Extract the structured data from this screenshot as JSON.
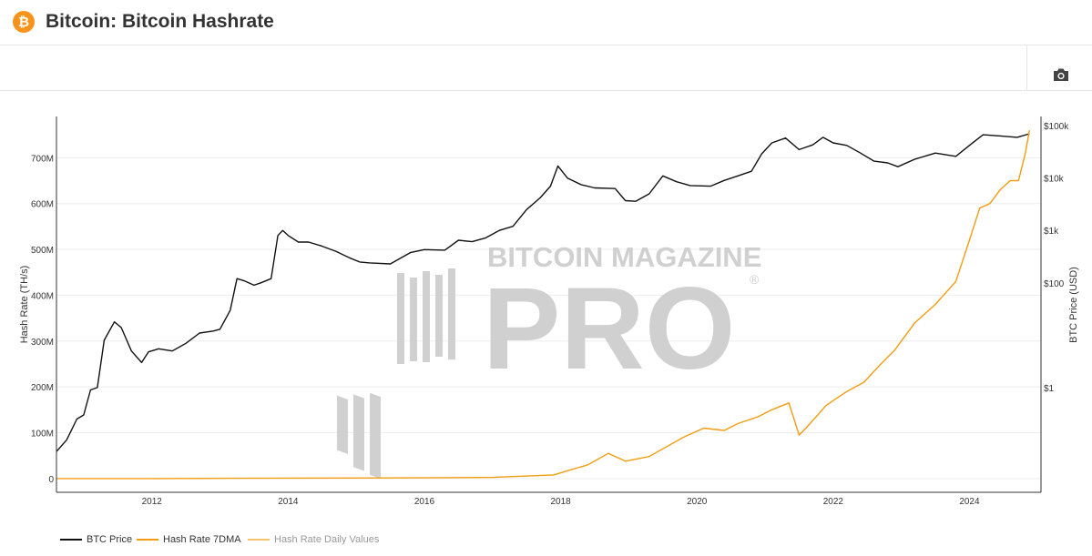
{
  "header": {
    "logo_icon": "bitcoin-icon",
    "logo_glyph": "₿",
    "title": "Bitcoin: Bitcoin Hashrate"
  },
  "toolbar": {
    "camera_icon": "camera-icon"
  },
  "watermark": {
    "line1": "BITCOIN MAGAZINE",
    "line2": "PRO",
    "registered": "®"
  },
  "colors": {
    "btc_price": "#111111",
    "hash_rate_7dma": "#f39c12",
    "hash_rate_daily": "#f6c26b",
    "grid": "#eeeeee",
    "watermark": "#d0d0d0"
  },
  "chart_data": {
    "type": "line",
    "title": "",
    "left_axis": {
      "label": "Hash Rate (TH/s)",
      "ticks": [
        0,
        100000000,
        200000000,
        300000000,
        400000000,
        500000000,
        600000000,
        700000000
      ],
      "tick_labels": [
        "0",
        "100M",
        "200M",
        "300M",
        "400M",
        "500M",
        "600M",
        "700M"
      ],
      "range": [
        -30000000,
        790000000
      ]
    },
    "right_axis": {
      "label": "BTC Price (USD)",
      "scale": "log",
      "ticks": [
        1,
        100,
        1000,
        10000,
        100000
      ],
      "tick_labels": [
        "$1",
        "$100",
        "$1k",
        "$10k",
        "$100k"
      ],
      "range": [
        0.01,
        150000
      ]
    },
    "x_axis": {
      "ticks": [
        2012,
        2014,
        2016,
        2018,
        2020,
        2022,
        2024
      ],
      "tick_labels": [
        "2012",
        "2014",
        "2016",
        "2018",
        "2020",
        "2022",
        "2024"
      ],
      "range": [
        2010.6,
        2025.05
      ]
    },
    "grid": true,
    "legend_position": "bottom-left",
    "series": [
      {
        "name": "BTC Price",
        "axis": "right",
        "x": [
          2010.6,
          2010.75,
          2010.9,
          2011.0,
          2011.1,
          2011.2,
          2011.3,
          2011.45,
          2011.55,
          2011.7,
          2011.85,
          2011.95,
          2012.1,
          2012.3,
          2012.5,
          2012.7,
          2012.9,
          2013.0,
          2013.15,
          2013.25,
          2013.35,
          2013.5,
          2013.6,
          2013.75,
          2013.85,
          2013.92,
          2014.0,
          2014.15,
          2014.3,
          2014.5,
          2014.7,
          2014.9,
          2015.05,
          2015.2,
          2015.5,
          2015.8,
          2016.0,
          2016.3,
          2016.5,
          2016.7,
          2016.9,
          2017.1,
          2017.3,
          2017.5,
          2017.7,
          2017.85,
          2017.96,
          2018.1,
          2018.3,
          2018.5,
          2018.8,
          2018.95,
          2019.1,
          2019.3,
          2019.5,
          2019.7,
          2019.9,
          2020.2,
          2020.4,
          2020.6,
          2020.8,
          2020.95,
          2021.1,
          2021.3,
          2021.5,
          2021.7,
          2021.85,
          2022.0,
          2022.2,
          2022.4,
          2022.6,
          2022.8,
          2022.95,
          2023.2,
          2023.5,
          2023.8,
          2024.0,
          2024.2,
          2024.5,
          2024.7,
          2024.88
        ],
        "y": [
          0.06,
          0.1,
          0.25,
          0.3,
          0.9,
          1.0,
          8,
          18,
          14,
          5,
          3,
          4.8,
          5.5,
          5,
          7,
          11,
          12,
          13,
          30,
          120,
          110,
          90,
          100,
          120,
          800,
          1000,
          800,
          600,
          600,
          500,
          400,
          300,
          250,
          240,
          230,
          380,
          430,
          420,
          650,
          610,
          720,
          1000,
          1200,
          2500,
          4200,
          7000,
          17000,
          10000,
          7500,
          6500,
          6300,
          3700,
          3600,
          5000,
          11000,
          8500,
          7200,
          7000,
          9000,
          11000,
          13500,
          29000,
          47000,
          58000,
          35000,
          43000,
          60000,
          47000,
          42000,
          30000,
          21000,
          19500,
          16500,
          23000,
          30000,
          26000,
          42000,
          67000,
          63000,
          60000,
          70000
        ]
      },
      {
        "name": "Hash Rate 7DMA",
        "axis": "left",
        "x": [
          2010.6,
          2012.0,
          2014.0,
          2016.0,
          2017.0,
          2017.9,
          2018.1,
          2018.4,
          2018.7,
          2018.95,
          2019.3,
          2019.5,
          2019.8,
          2020.1,
          2020.4,
          2020.6,
          2020.9,
          2021.1,
          2021.35,
          2021.5,
          2021.6,
          2021.9,
          2022.2,
          2022.45,
          2022.7,
          2022.9,
          2023.2,
          2023.5,
          2023.8,
          2024.0,
          2024.15,
          2024.3,
          2024.45,
          2024.6,
          2024.72,
          2024.82,
          2024.88
        ],
        "y": [
          0,
          0,
          1000000,
          1500000,
          2500000,
          8000000,
          17000000,
          30000000,
          55000000,
          38000000,
          48000000,
          65000000,
          90000000,
          110000000,
          105000000,
          120000000,
          135000000,
          150000000,
          165000000,
          95000000,
          110000000,
          160000000,
          190000000,
          210000000,
          250000000,
          280000000,
          340000000,
          380000000,
          430000000,
          520000000,
          590000000,
          600000000,
          630000000,
          650000000,
          650000000,
          710000000,
          760000000
        ]
      },
      {
        "name": "Hash Rate Daily Values",
        "axis": "left",
        "x": [],
        "y": []
      }
    ]
  }
}
